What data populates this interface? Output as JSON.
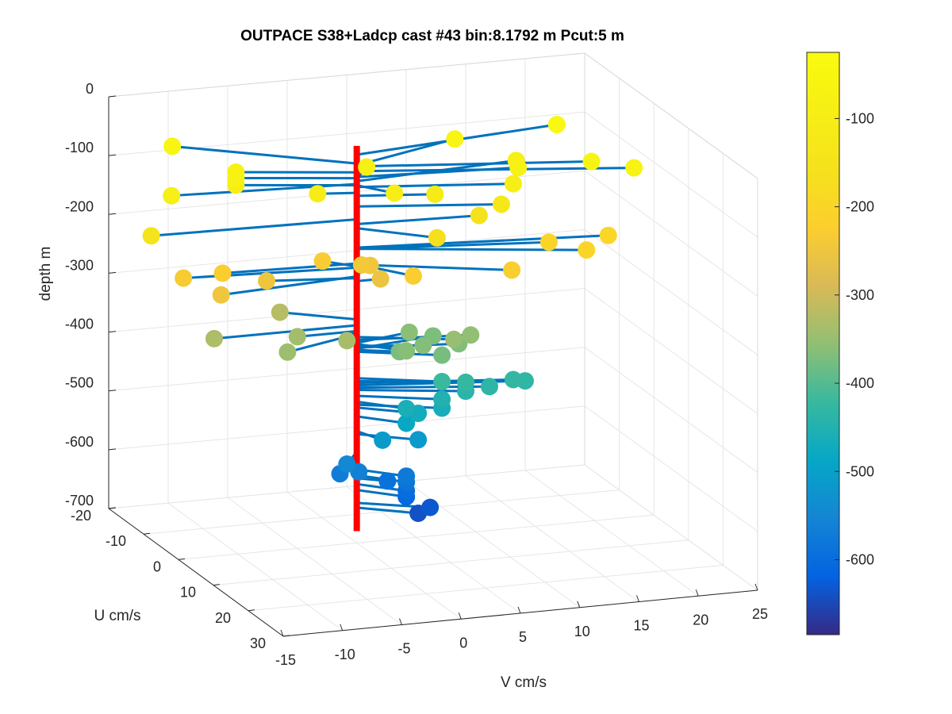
{
  "chart_data": {
    "type": "scatter",
    "subtype": "3d-stick-plot",
    "title": "OUTPACE S38+Ladcp cast #43 bin:8.1792 m  Pcut:5 m",
    "xlabel": "V cm/s",
    "ylabel": "U cm/s",
    "zlabel": "depth m",
    "xlim": [
      -15,
      25
    ],
    "ylim": [
      -20,
      30
    ],
    "zlim": [
      -700,
      0
    ],
    "x_ticks": [
      "-15",
      "-10",
      "-5",
      "0",
      "5",
      "10",
      "15",
      "20",
      "25"
    ],
    "y_ticks": [
      "-20",
      "-10",
      "0",
      "10",
      "20",
      "30"
    ],
    "z_ticks": [
      "0",
      "-100",
      "-200",
      "-300",
      "-400",
      "-500",
      "-600",
      "-700"
    ],
    "grid": true,
    "profile_axis": {
      "x": 0,
      "y": 0,
      "z": [
        -680,
        -25
      ],
      "color": "#ff0000"
    },
    "stick_color": "#0072bd",
    "colorbar": {
      "ticks": [
        "-100",
        "-200",
        "-300",
        "-400",
        "-500",
        "-600"
      ],
      "range": [
        -685,
        -25
      ],
      "colormap": "parula"
    },
    "points": [
      {
        "v": 18,
        "u": -4,
        "z": -40
      },
      {
        "v": -12,
        "u": -12,
        "z": -55
      },
      {
        "v": 10,
        "u": -6,
        "z": -58
      },
      {
        "v": 18,
        "u": 6,
        "z": -60
      },
      {
        "v": 21,
        "u": 8,
        "z": -68
      },
      {
        "v": -9,
        "u": -4,
        "z": -70
      },
      {
        "v": 13,
        "u": 2,
        "z": -78
      },
      {
        "v": -9,
        "u": -4,
        "z": -80
      },
      {
        "v": 2,
        "u": -4,
        "z": -82
      },
      {
        "v": 14,
        "u": -2,
        "z": -85
      },
      {
        "v": -15,
        "u": -2,
        "z": -90
      },
      {
        "v": -9,
        "u": -4,
        "z": -92
      },
      {
        "v": 2,
        "u": 4,
        "z": -92
      },
      {
        "v": 12,
        "u": 4,
        "z": -95
      },
      {
        "v": -3,
        "u": -1,
        "z": -105
      },
      {
        "v": 6,
        "u": 2,
        "z": -110
      },
      {
        "v": 11,
        "u": 4,
        "z": -128
      },
      {
        "v": -17,
        "u": -1,
        "z": -150
      },
      {
        "v": 10,
        "u": 1,
        "z": -158
      },
      {
        "v": 5,
        "u": 6,
        "z": -165
      },
      {
        "v": 20,
        "u": 4,
        "z": -198
      },
      {
        "v": 15,
        "u": 4,
        "z": -200
      },
      {
        "v": 17,
        "u": 8,
        "z": -200
      },
      {
        "v": -11,
        "u": -1,
        "z": -225
      },
      {
        "v": 3,
        "u": 6,
        "z": -226
      },
      {
        "v": 11,
        "u": 7,
        "z": -227
      },
      {
        "v": -2,
        "u": -3,
        "z": -230
      },
      {
        "v": -14,
        "u": -2,
        "z": -232
      },
      {
        "v": 1,
        "u": -2,
        "z": -238
      },
      {
        "v": 2,
        "u": -3,
        "z": -245
      },
      {
        "v": -12,
        "u": 2,
        "z": -247
      },
      {
        "v": -7,
        "u": -2,
        "z": -250
      },
      {
        "v": 2,
        "u": 0,
        "z": -255
      },
      {
        "v": -5,
        "u": -5,
        "z": -320
      },
      {
        "v": -12,
        "u": 0,
        "z": -330
      },
      {
        "v": -2,
        "u": 4,
        "z": -335
      },
      {
        "v": -5,
        "u": 0,
        "z": -340
      },
      {
        "v": -7,
        "u": 4,
        "z": -345
      },
      {
        "v": 7,
        "u": 4,
        "z": -350
      },
      {
        "v": 9,
        "u": 2,
        "z": -355
      },
      {
        "v": 5,
        "u": -2,
        "z": -360
      },
      {
        "v": 3,
        "u": 4,
        "z": -362
      },
      {
        "v": 5,
        "u": 2,
        "z": -365
      },
      {
        "v": 8,
        "u": 2,
        "z": -368
      },
      {
        "v": 7,
        "u": -2,
        "z": -370
      },
      {
        "v": 3,
        "u": 2,
        "z": -372
      },
      {
        "v": 6,
        "u": 4,
        "z": -375
      },
      {
        "v": 6,
        "u": 4,
        "z": -420
      },
      {
        "v": 8,
        "u": 4,
        "z": -425
      },
      {
        "v": 12,
        "u": 4,
        "z": -428
      },
      {
        "v": 13,
        "u": 4,
        "z": -432
      },
      {
        "v": 10,
        "u": 4,
        "z": -436
      },
      {
        "v": 8,
        "u": 4,
        "z": -440
      },
      {
        "v": 6,
        "u": 4,
        "z": -450
      },
      {
        "v": 3,
        "u": 4,
        "z": -460
      },
      {
        "v": 6,
        "u": 4,
        "z": -465
      },
      {
        "v": 4,
        "u": 4,
        "z": -470
      },
      {
        "v": 3,
        "u": 4,
        "z": -485
      },
      {
        "v": 1,
        "u": 4,
        "z": -510
      },
      {
        "v": 4,
        "u": 4,
        "z": -515
      },
      {
        "v": -2,
        "u": 4,
        "z": -545
      },
      {
        "v": -1,
        "u": 4,
        "z": -560
      },
      {
        "v": -2,
        "u": 2,
        "z": -570
      },
      {
        "v": 3,
        "u": 4,
        "z": -575
      },
      {
        "v": 3,
        "u": 4,
        "z": -585
      },
      {
        "v": 2,
        "u": 2,
        "z": -590
      },
      {
        "v": 3,
        "u": 4,
        "z": -600
      },
      {
        "v": 3,
        "u": 4,
        "z": -610
      },
      {
        "v": 5,
        "u": 4,
        "z": -632
      },
      {
        "v": 4,
        "u": 4,
        "z": -640
      }
    ]
  }
}
